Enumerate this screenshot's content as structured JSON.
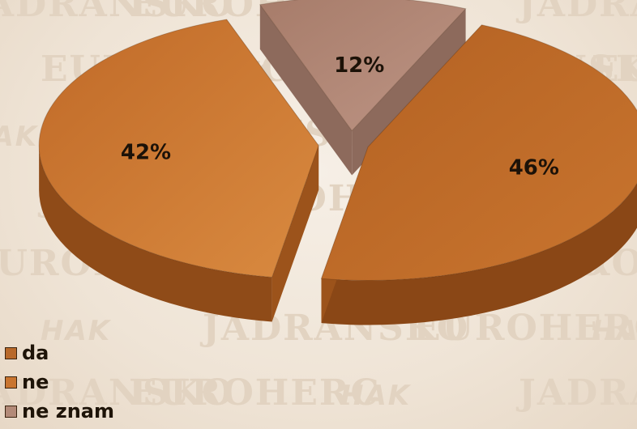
{
  "watermark": {
    "texts": [
      "JADRANSKO",
      "EUROHERC",
      "HAK",
      "JADRANSKO",
      "EUROHERC",
      "HAK",
      "JADRANSKO",
      "EUROHERC",
      "HAK",
      "JADRANSKO",
      "EUROHERC",
      "HAK"
    ]
  },
  "chart_data": {
    "type": "pie",
    "title": "",
    "categories": [
      "da",
      "ne",
      "ne znam"
    ],
    "values": [
      46,
      42,
      12
    ],
    "labels": [
      "46%",
      "42%",
      "12%"
    ],
    "colors": [
      "#b8692b",
      "#c97530",
      "#b38a78"
    ],
    "style": "3d-exploded",
    "legend_position": "bottom-left"
  }
}
